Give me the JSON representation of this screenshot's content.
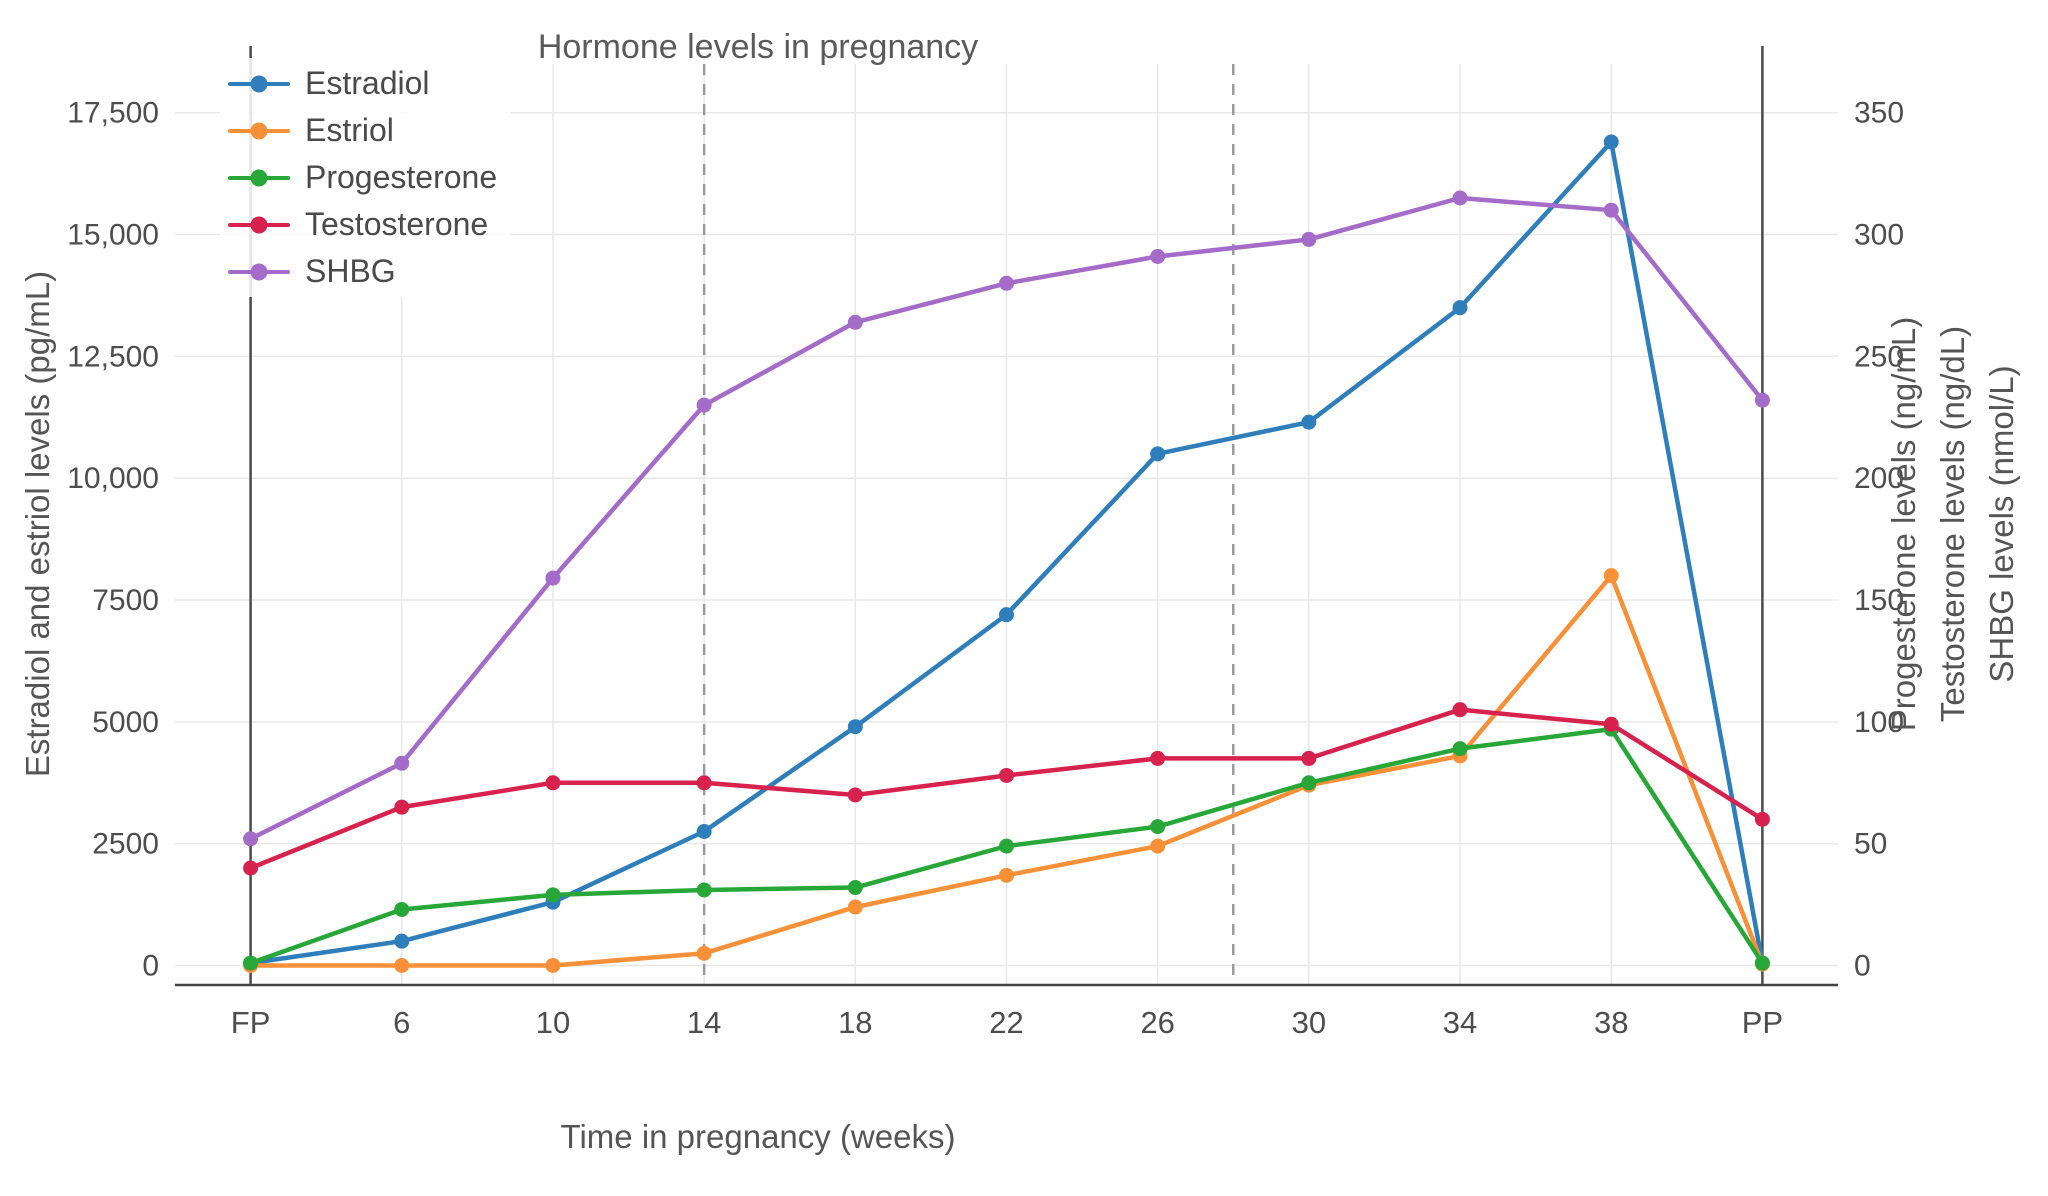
{
  "chart_data": {
    "type": "line",
    "title": "Hormone levels in pregnancy",
    "xlabel": "Time in pregnancy (weeks)",
    "ylabel_left": "Estradiol and estriol levels (pg/mL)",
    "ylabel_right_lines": [
      "Progesterone levels (ng/mL)",
      "Testosterone levels (ng/dL)",
      "SHBG levels (nmol/L)"
    ],
    "categories": [
      "FP",
      "6",
      "10",
      "14",
      "18",
      "22",
      "26",
      "30",
      "34",
      "38",
      "PP"
    ],
    "left_axis": {
      "ticks": [
        "0",
        "2500",
        "5000",
        "7500",
        "10,000",
        "12,500",
        "15,000",
        "17,500"
      ],
      "tick_values": [
        0,
        2500,
        5000,
        7500,
        10000,
        12500,
        15000,
        17500
      ],
      "range": [
        -400,
        18500
      ]
    },
    "right_axis": {
      "ticks": [
        "0",
        "50",
        "100",
        "150",
        "200",
        "250",
        "300",
        "350"
      ],
      "tick_values": [
        0,
        50,
        100,
        150,
        200,
        250,
        300,
        350
      ],
      "range": [
        -8,
        370
      ]
    },
    "series": [
      {
        "name": "Estradiol",
        "axis": "left",
        "color": "#2E7EBB",
        "values": [
          50,
          500,
          1300,
          2750,
          4900,
          7200,
          10500,
          11150,
          13500,
          16900,
          50
        ]
      },
      {
        "name": "Estriol",
        "axis": "left",
        "color": "#F89038",
        "values": [
          0,
          0,
          0,
          250,
          1200,
          1850,
          2450,
          3700,
          4300,
          8000,
          30
        ]
      },
      {
        "name": "Progesterone",
        "axis": "right",
        "color": "#27A737",
        "values": [
          1,
          23,
          29,
          31,
          32,
          49,
          57,
          75,
          89,
          97,
          1
        ]
      },
      {
        "name": "Testosterone",
        "axis": "right",
        "color": "#D6224C",
        "values": [
          40,
          65,
          75,
          75,
          70,
          78,
          85,
          85,
          105,
          99,
          60
        ]
      },
      {
        "name": "SHBG",
        "axis": "right",
        "color": "#A46BC9",
        "values": [
          52,
          83,
          159,
          230,
          264,
          280,
          291,
          298,
          315,
          310,
          232
        ]
      }
    ],
    "vlines": [
      {
        "x_index": 0,
        "style": "solid",
        "meaning": "FP boundary"
      },
      {
        "x_index": 3,
        "style": "dashed",
        "meaning": "week 14 boundary"
      },
      {
        "x_index": 6.5,
        "style": "dashed",
        "meaning": "week 28 boundary"
      },
      {
        "x_index": 10,
        "style": "solid",
        "meaning": "PP boundary"
      }
    ],
    "legend_position": "top-left",
    "grid": true,
    "colors": {
      "grid": "#e8e8e8",
      "axis_line": "#444444",
      "solid_vline": "#4a4a4a",
      "dashed_vline": "#9a9a9a",
      "tick_text": "#4d4d4d"
    }
  }
}
